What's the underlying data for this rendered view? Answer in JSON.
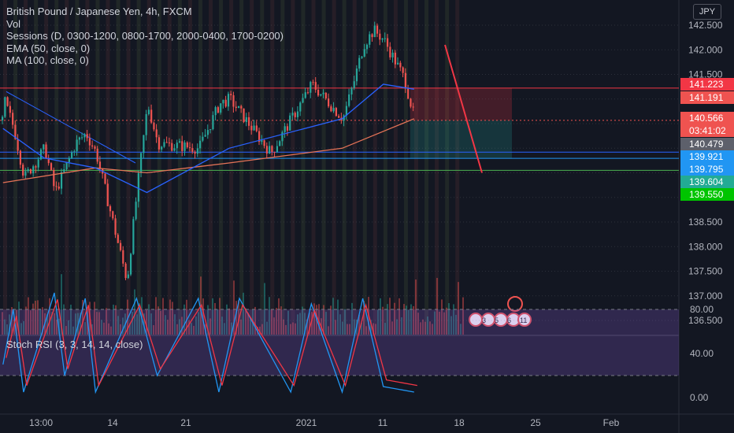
{
  "header": {
    "symbol_title": "British Pound / Japanese Yen, 4h, FXCM",
    "indicators": [
      "Vol",
      "Sessions (D, 0300-1200, 0800-1700, 2000-0400, 1700-0200)",
      "EMA (50, close, 0)",
      "MA (100, close, 0)"
    ],
    "currency": "JPY"
  },
  "oscillator": {
    "label": "Stoch RSI (3, 3, 14, 14, close)"
  },
  "price_axis": {
    "ticks": [
      "142.500",
      "142.000",
      "141.500",
      "141.000",
      "140.500",
      "140.000",
      "139.500",
      "139.000",
      "138.500",
      "138.000",
      "137.500",
      "137.000",
      "136.500"
    ]
  },
  "price_badges": [
    {
      "text": "141.223",
      "color": "#f23645"
    },
    {
      "text": "141.191",
      "color": "#ef5350"
    },
    {
      "text": "140.566",
      "color": "#ef5350"
    },
    {
      "text": "03:41:02",
      "color": "#ef5350"
    },
    {
      "text": "140.479",
      "color": "#5d606b"
    },
    {
      "text": "139.921",
      "color": "#2196f3"
    },
    {
      "text": "139.795",
      "color": "#2196f3"
    },
    {
      "text": "139.604",
      "color": "#22ab94"
    },
    {
      "text": "139.550",
      "color": "#00c400"
    }
  ],
  "stoch_axis": {
    "ticks": [
      "80.00",
      "40.00",
      "0.00"
    ]
  },
  "time_axis": {
    "labels": [
      "13:00",
      "14",
      "21",
      "2021",
      "11",
      "18",
      "25",
      "Feb"
    ]
  },
  "event_markers": [
    "3",
    "5",
    "6",
    "11"
  ],
  "colors": {
    "background": "#131722",
    "bull": "#26a69a",
    "bear": "#ef5350",
    "ema": "#2962ff",
    "ma": "#e57357",
    "stoch_k": "#2196f3",
    "stoch_d": "#f23645",
    "stoch_band": "#7e57c2"
  },
  "chart_data": {
    "type": "candlestick",
    "title": "British Pound / Japanese Yen, 4h, FXCM",
    "y_range": [
      136.3,
      142.6
    ],
    "horizontal_levels": [
      141.223,
      140.566,
      139.921,
      139.795,
      139.55
    ],
    "last_price": 140.566,
    "price_anchors": [
      {
        "x": "Dec 9",
        "y": 141.0
      },
      {
        "x": "Dec 10",
        "y": 140.4
      },
      {
        "x": "Dec 11",
        "y": 139.4
      },
      {
        "x": "Dec 13",
        "y": 140.0
      },
      {
        "x": "Dec 14",
        "y": 139.1
      },
      {
        "x": "Dec 15",
        "y": 139.6
      },
      {
        "x": "Dec 16",
        "y": 140.1
      },
      {
        "x": "Dec 17",
        "y": 140.3
      },
      {
        "x": "Dec 18",
        "y": 139.9
      },
      {
        "x": "Dec 21",
        "y": 137.3
      },
      {
        "x": "Dec 22",
        "y": 139.2
      },
      {
        "x": "Dec 23",
        "y": 140.9
      },
      {
        "x": "Dec 24",
        "y": 140.1
      },
      {
        "x": "Dec 28",
        "y": 140.0
      },
      {
        "x": "Dec 30",
        "y": 140.9
      },
      {
        "x": "Dec 31",
        "y": 141.0
      },
      {
        "x": "Jan 4",
        "y": 139.9
      },
      {
        "x": "Jan 6",
        "y": 140.6
      },
      {
        "x": "Jan 8",
        "y": 141.3
      },
      {
        "x": "Jan 11",
        "y": 140.6
      },
      {
        "x": "Jan 12",
        "y": 141.3
      },
      {
        "x": "Jan 13",
        "y": 142.1
      },
      {
        "x": "Jan 14",
        "y": 142.4
      },
      {
        "x": "Jan 15",
        "y": 142.2
      },
      {
        "x": "Jan 17",
        "y": 141.4
      },
      {
        "x": "Jan 18",
        "y": 140.566
      }
    ],
    "ema50_anchors": [
      {
        "x": "Dec 9",
        "y": 140.4
      },
      {
        "x": "Dec 13",
        "y": 139.8
      },
      {
        "x": "Dec 18",
        "y": 139.6
      },
      {
        "x": "Dec 23",
        "y": 139.1
      },
      {
        "x": "Dec 31",
        "y": 140.0
      },
      {
        "x": "Jan 11",
        "y": 140.6
      },
      {
        "x": "Jan 15",
        "y": 141.3
      },
      {
        "x": "Jan 18",
        "y": 141.2
      }
    ],
    "ma100_anchors": [
      {
        "x": "Dec 9",
        "y": 139.3
      },
      {
        "x": "Dec 18",
        "y": 139.6
      },
      {
        "x": "Dec 23",
        "y": 139.5
      },
      {
        "x": "Dec 31",
        "y": 139.7
      },
      {
        "x": "Jan 11",
        "y": 140.0
      },
      {
        "x": "Jan 18",
        "y": 140.6
      }
    ],
    "stoch_k_anchors": [
      {
        "x": "Dec 9",
        "y": 30
      },
      {
        "x": "Dec 10",
        "y": 80
      },
      {
        "x": "Dec 11",
        "y": 5
      },
      {
        "x": "Dec 14",
        "y": 95
      },
      {
        "x": "Dec 15",
        "y": 20
      },
      {
        "x": "Dec 17",
        "y": 90
      },
      {
        "x": "Dec 18",
        "y": 5
      },
      {
        "x": "Dec 22",
        "y": 90
      },
      {
        "x": "Dec 24",
        "y": 20
      },
      {
        "x": "Dec 28",
        "y": 90
      },
      {
        "x": "Dec 30",
        "y": 5
      },
      {
        "x": "Jan 1",
        "y": 90
      },
      {
        "x": "Jan 6",
        "y": 5
      },
      {
        "x": "Jan 8",
        "y": 85
      },
      {
        "x": "Jan 11",
        "y": 5
      },
      {
        "x": "Jan 13",
        "y": 90
      },
      {
        "x": "Jan 15",
        "y": 10
      },
      {
        "x": "Jan 18",
        "y": 5
      }
    ],
    "stoch_range": [
      0,
      100
    ],
    "stoch_bands": [
      80,
      20
    ],
    "x_labels": [
      "13:00",
      "14",
      "21",
      "2021",
      "11",
      "18",
      "25",
      "Feb"
    ]
  }
}
